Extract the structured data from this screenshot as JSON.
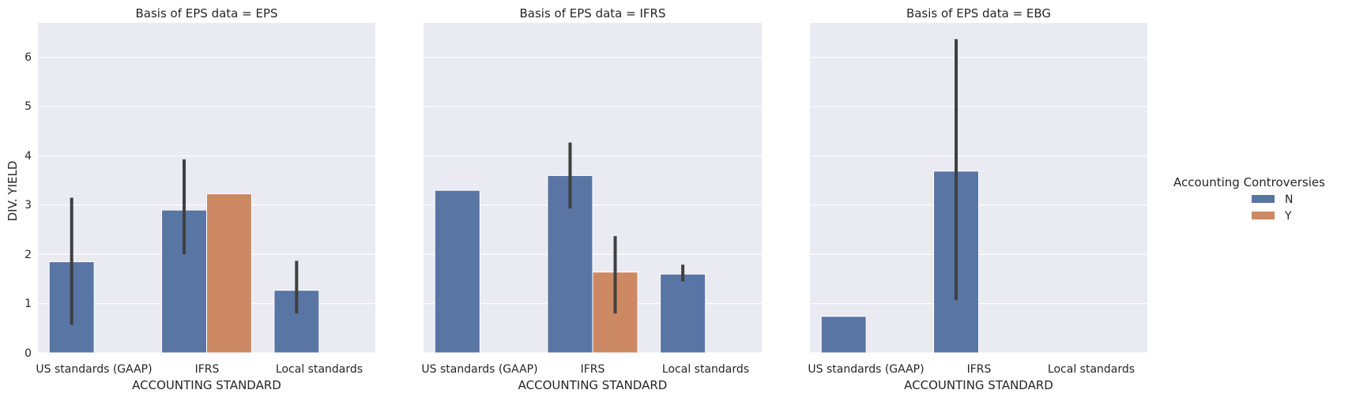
{
  "chart_data": {
    "type": "bar",
    "ylabel": "DIV. YIELD",
    "ylim": [
      0,
      6.7
    ],
    "yticks": [
      "0",
      "1",
      "2",
      "3",
      "4",
      "5",
      "6"
    ],
    "grid": true,
    "categories": [
      "US standards (GAAP)",
      "IFRS",
      "Local standards"
    ],
    "legend": {
      "title": "Accounting Controversies",
      "placement": "right",
      "entries": [
        {
          "name": "N",
          "color": "#5875a4"
        },
        {
          "name": "Y",
          "color": "#cc8963"
        }
      ]
    },
    "facets": [
      {
        "title": "Basis of EPS data = EPS",
        "xlabel": "ACCOUNTING STANDARD",
        "series": [
          {
            "name": "N",
            "values": [
              1.85,
              2.9,
              1.27
            ],
            "ci": [
              [
                0.57,
                3.15
              ],
              [
                2.0,
                3.93
              ],
              [
                0.8,
                1.87
              ]
            ]
          },
          {
            "name": "Y",
            "values": [
              null,
              3.23,
              null
            ],
            "ci": [
              null,
              null,
              null
            ]
          }
        ]
      },
      {
        "title": "Basis of EPS data = IFRS",
        "xlabel": "ACCOUNTING STANDARD",
        "series": [
          {
            "name": "N",
            "values": [
              3.3,
              3.6,
              1.6
            ],
            "ci": [
              null,
              [
                2.93,
                4.27
              ],
              [
                1.45,
                1.79
              ]
            ]
          },
          {
            "name": "Y",
            "values": [
              null,
              1.64,
              null
            ],
            "ci": [
              null,
              [
                0.8,
                2.37
              ],
              null
            ]
          }
        ]
      },
      {
        "title": "Basis of EPS data = EBG",
        "xlabel": "ACCOUNTING STANDARD",
        "series": [
          {
            "name": "N",
            "values": [
              0.74,
              3.69,
              null
            ],
            "ci": [
              null,
              [
                1.07,
                6.37
              ],
              null
            ]
          },
          {
            "name": "Y",
            "values": [
              null,
              null,
              null
            ],
            "ci": [
              null,
              null,
              null
            ]
          }
        ]
      }
    ]
  }
}
